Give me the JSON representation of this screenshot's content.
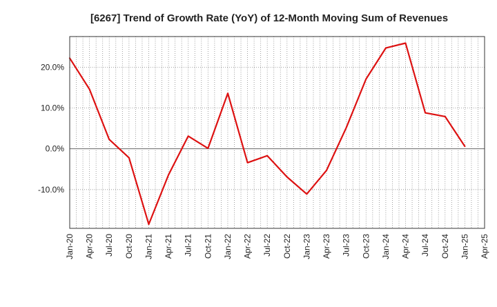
{
  "chart_data": {
    "type": "line",
    "title": "[6267]  Trend of Growth Rate (YoY) of 12-Month Moving Sum of Revenues",
    "xlabel": "",
    "ylabel": "",
    "x_tick_labels": [
      "Jan-20",
      "Apr-20",
      "Jul-20",
      "Oct-20",
      "Jan-21",
      "Apr-21",
      "Jul-21",
      "Oct-21",
      "Jan-22",
      "Apr-22",
      "Jul-22",
      "Oct-22",
      "Jan-23",
      "Apr-23",
      "Jul-23",
      "Oct-23",
      "Jan-24",
      "Apr-24",
      "Jul-24",
      "Oct-24",
      "Jan-25",
      "Apr-25"
    ],
    "y_ticks": [
      -10,
      0,
      10,
      20
    ],
    "y_tick_labels": [
      "-10.0%",
      "0.0%",
      "10.0%",
      "20.0%"
    ],
    "ylim": [
      -19.5,
      27.5
    ],
    "grid": true,
    "series": [
      {
        "color": "#dd1111",
        "x": [
          "Jan-20",
          "Apr-20",
          "Jul-20",
          "Oct-20",
          "Jan-21",
          "Apr-21",
          "Jul-21",
          "Oct-21",
          "Jan-22",
          "Apr-22",
          "Jul-22",
          "Oct-22",
          "Jan-23",
          "Apr-23",
          "Jul-23",
          "Oct-23",
          "Jan-24",
          "Apr-24",
          "Jul-24",
          "Oct-24",
          "Jan-25"
        ],
        "values": [
          22.2,
          14.6,
          2.3,
          -2.2,
          -18.5,
          -6.4,
          3.1,
          0.1,
          13.6,
          -3.4,
          -1.7,
          -6.9,
          -11.1,
          -5.3,
          5.2,
          17.1,
          24.7,
          25.9,
          8.8,
          7.9,
          0.6
        ]
      }
    ]
  }
}
